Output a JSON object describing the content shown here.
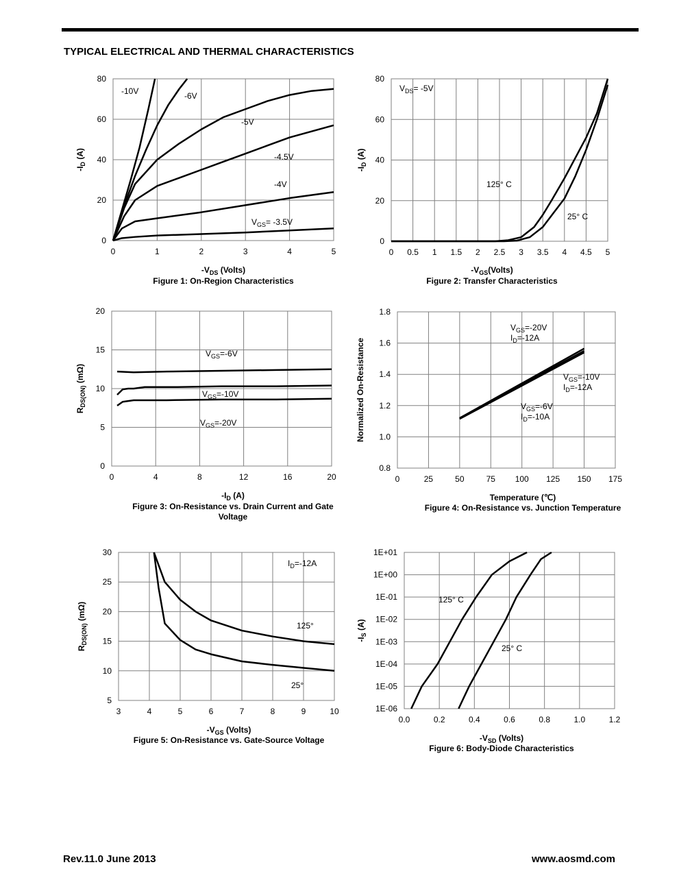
{
  "header": {
    "title": "TYPICAL ELECTRICAL AND THERMAL CHARACTERISTICS"
  },
  "chart_data": [
    {
      "type": "line",
      "xlabel": [
        "-V",
        "DS",
        " (Volts)"
      ],
      "ylabel": [
        "-I",
        "D",
        " (A)"
      ],
      "caption": "Figure 1: On-Region Characteristics",
      "xlim": [
        0,
        5
      ],
      "xticks": [
        0,
        1,
        2,
        3,
        4,
        5
      ],
      "ylim": [
        0,
        80
      ],
      "yticks": [
        0,
        20,
        40,
        60,
        80
      ],
      "grid": true,
      "series": [
        {
          "name": "-10V",
          "color": "#000000",
          "x": [
            0,
            0.2,
            0.4,
            0.6,
            0.8,
            0.95
          ],
          "values": [
            0,
            15,
            30,
            46,
            65,
            80
          ]
        },
        {
          "name": "-6V",
          "color": "#000000",
          "x": [
            0,
            0.25,
            0.5,
            0.75,
            1,
            1.25,
            1.5,
            1.68
          ],
          "values": [
            0,
            17,
            32,
            45,
            57,
            67,
            75,
            80
          ]
        },
        {
          "name": "-5V",
          "color": "#000000",
          "x": [
            0,
            0.25,
            0.5,
            1,
            1.5,
            2,
            2.5,
            3,
            3.5,
            4,
            4.5,
            5
          ],
          "values": [
            0,
            16,
            28,
            40,
            48,
            55,
            61,
            65,
            69,
            72,
            74,
            75
          ]
        },
        {
          "name": "-4.5V",
          "color": "#000000",
          "x": [
            0,
            0.25,
            0.5,
            1,
            1.5,
            2,
            2.5,
            3,
            3.5,
            4,
            4.5,
            5
          ],
          "values": [
            0,
            12,
            20,
            27,
            31,
            35,
            39,
            43,
            47,
            51,
            54,
            57
          ]
        },
        {
          "name": "-4V",
          "color": "#000000",
          "x": [
            0,
            0.2,
            0.5,
            1,
            2,
            3,
            4,
            5
          ],
          "values": [
            0,
            6,
            9.5,
            11,
            14,
            17.5,
            21,
            24
          ]
        },
        {
          "name": [
            "V",
            "GS",
            "= -3.5V"
          ],
          "color": "#000000",
          "x": [
            0,
            0.2,
            0.5,
            1,
            2,
            3,
            4,
            5
          ],
          "values": [
            0,
            1.2,
            1.8,
            2.5,
            3.2,
            4,
            5,
            6
          ]
        }
      ],
      "annotations": []
    },
    {
      "type": "line",
      "xlabel": [
        "-V",
        "GS",
        "(Volts)"
      ],
      "ylabel": [
        "-I",
        "D",
        " (A)"
      ],
      "caption": "Figure 2: Transfer Characteristics",
      "xlim": [
        0,
        5
      ],
      "xticks": [
        0,
        0.5,
        1,
        1.5,
        2,
        2.5,
        3,
        3.5,
        4,
        4.5,
        5
      ],
      "ylim": [
        0,
        80
      ],
      "yticks": [
        0,
        20,
        40,
        60,
        80
      ],
      "grid": true,
      "series": [
        {
          "name": "125° C",
          "color": "#000000",
          "x": [
            0,
            2.4,
            2.7,
            3,
            3.3,
            3.5,
            3.7,
            4,
            4.25,
            4.5,
            4.75,
            5
          ],
          "values": [
            0,
            0,
            0.5,
            2,
            7,
            13,
            20,
            31,
            41,
            51,
            63,
            80
          ]
        },
        {
          "name": "25° C",
          "color": "#000000",
          "x": [
            0,
            2.6,
            2.9,
            3.2,
            3.5,
            3.75,
            4,
            4.25,
            4.5,
            4.75,
            5
          ],
          "values": [
            0,
            0,
            0.3,
            2,
            7,
            14,
            21,
            32,
            45,
            60,
            77
          ]
        }
      ],
      "annotations": [
        [
          "V",
          "DS",
          "= -5V"
        ]
      ]
    },
    {
      "type": "line",
      "xlabel": [
        "-I",
        "D",
        " (A)"
      ],
      "ylabel": [
        "R",
        "DS(ON)",
        " (mΩ)"
      ],
      "caption": [
        "Figure 3: On-Resistance vs. Drain Current and Gate",
        "Voltage"
      ],
      "xlim": [
        0,
        20
      ],
      "xticks": [
        0,
        4,
        8,
        12,
        16,
        20
      ],
      "ylim": [
        0,
        20
      ],
      "yticks": [
        0,
        5,
        10,
        15,
        20
      ],
      "grid": true,
      "series": [
        {
          "name": [
            "V",
            "GS",
            "=-6V"
          ],
          "color": "#000000",
          "x": [
            0.5,
            2,
            5,
            10,
            15,
            20
          ],
          "values": [
            12.2,
            12.1,
            12.2,
            12.3,
            12.4,
            12.5
          ]
        },
        {
          "name": [
            "V",
            "GS",
            "=-10V"
          ],
          "color": "#000000",
          "x": [
            0.5,
            1,
            1.5,
            2,
            3,
            6,
            10,
            15,
            20
          ],
          "values": [
            9.2,
            9.9,
            10,
            10,
            10.2,
            10.2,
            10.3,
            10.3,
            10.4
          ]
        },
        {
          "name": [
            "V",
            "GS",
            "=-20V"
          ],
          "color": "#000000",
          "x": [
            0.5,
            1,
            1.5,
            2,
            5,
            10,
            15,
            20
          ],
          "values": [
            7.8,
            8.3,
            8.4,
            8.5,
            8.5,
            8.6,
            8.6,
            8.7
          ]
        }
      ],
      "annotations": []
    },
    {
      "type": "line",
      "xlabel": "Temperature (℃)",
      "ylabel": "Normalized On-Resistance",
      "caption": "Figure 4: On-Resistance vs. Junction Temperature",
      "xlim": [
        0,
        175
      ],
      "xticks": [
        0,
        25,
        50,
        75,
        100,
        125,
        150,
        175
      ],
      "ylim": [
        0.8,
        1.8
      ],
      "yticks": [
        0.8,
        {
          "value": 1,
          "label": "1.0"
        },
        1.2,
        1.4,
        1.6,
        1.8
      ],
      "grid": true,
      "series": [
        {
          "name": [
            "V",
            "GS",
            "=-20V"
          ],
          "condition": [
            "I",
            "D",
            "=-12A"
          ],
          "color": "#000000",
          "x": [
            50,
            150
          ],
          "values": [
            1.12,
            1.565
          ]
        },
        {
          "name": [
            "V",
            "GS",
            "=-10V"
          ],
          "condition": [
            "I",
            "D",
            "=-12A"
          ],
          "color": "#000000",
          "x": [
            50,
            150
          ],
          "values": [
            1.12,
            1.55
          ]
        },
        {
          "name": [
            "V",
            "GS",
            "=-6V"
          ],
          "condition": [
            "I",
            "D",
            "=-10A"
          ],
          "color": "#000000",
          "x": [
            50,
            150
          ],
          "values": [
            1.115,
            1.54
          ]
        }
      ],
      "annotations": []
    },
    {
      "type": "line",
      "xlabel": [
        "-V",
        "GS",
        " (Volts)"
      ],
      "ylabel": [
        "R",
        "DS(ON)",
        " (mΩ)"
      ],
      "caption": "Figure 5: On-Resistance vs. Gate-Source Voltage",
      "xlim": [
        3,
        10
      ],
      "xticks": [
        3,
        4,
        5,
        6,
        7,
        8,
        9,
        10
      ],
      "ylim": [
        5,
        30
      ],
      "yticks": [
        5,
        10,
        15,
        20,
        25,
        30
      ],
      "grid": true,
      "series": [
        {
          "name": "125°",
          "color": "#000000",
          "x": [
            4.15,
            4.5,
            5,
            5.5,
            6,
            7,
            8,
            9,
            10
          ],
          "values": [
            30,
            25,
            22,
            20,
            18.5,
            16.8,
            15.8,
            15,
            14.5
          ]
        },
        {
          "name": "25°",
          "color": "#000000",
          "x": [
            4.15,
            4.3,
            4.5,
            5,
            5.5,
            6,
            7,
            8,
            9,
            10
          ],
          "values": [
            30,
            24,
            18,
            15.2,
            13.6,
            12.8,
            11.6,
            11,
            10.5,
            10
          ]
        }
      ],
      "annotations": [
        [
          "I",
          "D",
          "=-12A"
        ]
      ]
    },
    {
      "type": "line",
      "xlabel": [
        "-V",
        "SD",
        " (Volts)"
      ],
      "ylabel": [
        "-I",
        "S",
        " (A)"
      ],
      "caption": "Figure 6: Body-Diode Characteristics",
      "xlim": [
        0,
        1.2
      ],
      "xticks": [
        {
          "value": 0,
          "label": "0.0"
        },
        0.2,
        0.4,
        0.6,
        0.8,
        {
          "value": 1,
          "label": "1.0"
        },
        1.2
      ],
      "ylim": [
        1e-06,
        10
      ],
      "yscale": "log",
      "yticks": [
        {
          "value": 1e-06,
          "label": "1E-06"
        },
        {
          "value": 1e-05,
          "label": "1E-05"
        },
        {
          "value": 0.0001,
          "label": "1E-04"
        },
        {
          "value": 0.001,
          "label": "1E-03"
        },
        {
          "value": 0.01,
          "label": "1E-02"
        },
        {
          "value": 0.1,
          "label": "1E-01"
        },
        {
          "value": 1,
          "label": "1E+00"
        },
        {
          "value": 10,
          "label": "1E+01"
        }
      ],
      "grid": true,
      "series": [
        {
          "name": "125° C",
          "color": "#000000",
          "x": [
            0.04,
            0.1,
            0.19,
            0.26,
            0.33,
            0.41,
            0.5,
            0.6,
            0.7
          ],
          "values": [
            1e-06,
            1e-05,
            0.0001,
            0.001,
            0.01,
            0.1,
            1,
            4,
            10
          ]
        },
        {
          "name": "25° C",
          "color": "#000000",
          "x": [
            0.31,
            0.37,
            0.44,
            0.51,
            0.58,
            0.64,
            0.72,
            0.78,
            0.84
          ],
          "values": [
            1e-06,
            1e-05,
            0.0001,
            0.001,
            0.01,
            0.1,
            1,
            5,
            10
          ]
        }
      ],
      "annotations": []
    }
  ],
  "footer": {
    "revision": "Rev.11.0 June 2013",
    "website": "www.aosmd.com"
  }
}
